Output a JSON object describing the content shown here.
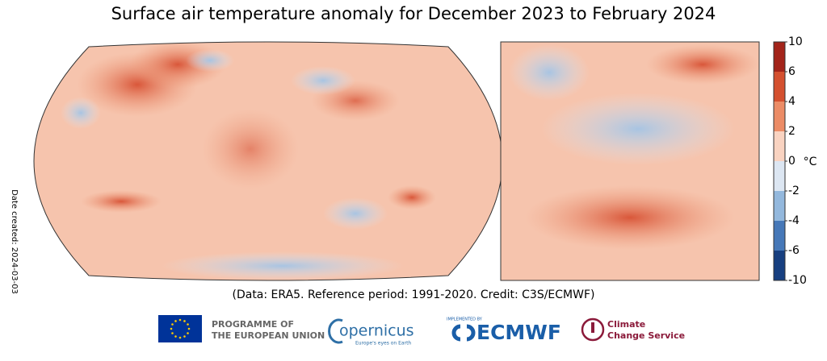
{
  "title": "Surface air temperature anomaly for December 2023 to February 2024",
  "date_label": "Date created: 2024-03-03",
  "credit": "(Data: ERA5.  Reference period: 1991-2020.  Credit: C3S/ECMWF)",
  "colorbar": {
    "unit": "°C",
    "ticks": [
      10,
      6,
      4,
      2,
      0,
      -2,
      -4,
      -6,
      -10
    ],
    "colors": [
      "#a3241a",
      "#d4502f",
      "#ec8c66",
      "#f9d3c1",
      "#dce6f2",
      "#93b8dd",
      "#4678b8",
      "#173f80"
    ]
  },
  "logos": {
    "eu": [
      "PROGRAMME OF",
      "THE EUROPEAN UNION"
    ],
    "copernicus": {
      "name": "opernicus",
      "tagline": "Europe's eyes on Earth"
    },
    "ecmwf": {
      "caption": "IMPLEMENTED BY",
      "name": "ECMWF"
    },
    "c3s": [
      "Climate",
      "Change Service"
    ]
  }
}
